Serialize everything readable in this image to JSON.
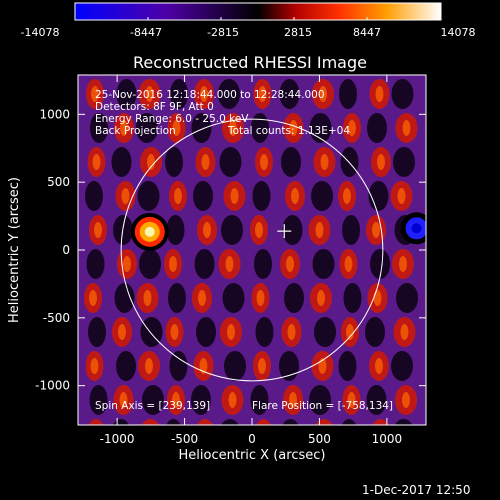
{
  "colorbar": {
    "ticks": [
      "-14078",
      "-8447",
      "-2815",
      "2815",
      "8447",
      "14078"
    ],
    "min": -14078,
    "max": 14078
  },
  "chart_data": {
    "type": "heatmap",
    "title": "Reconstructed RHESSI Image",
    "xlabel": "Heliocentric X (arcsec)",
    "ylabel": "Heliocentric Y (arcsec)",
    "xlim": [
      -1290,
      1290
    ],
    "ylim": [
      -1290,
      1290
    ],
    "xticks": [
      "-1000",
      "-500",
      "0",
      "500",
      "1000"
    ],
    "yticks": [
      "-1000",
      "-500",
      "0",
      "500",
      "1000"
    ],
    "xtick_values": [
      -1000,
      -500,
      0,
      500,
      1000
    ],
    "ytick_values": [
      -1000,
      -500,
      0,
      500,
      1000
    ],
    "solar_disk_radius": 970,
    "marker": {
      "x": 239,
      "y": 139
    },
    "flare_source": {
      "x": -758,
      "y": 134
    },
    "annotations": [
      "25-Nov-2016 12:18:44.000 to 12:28:44.000",
      "Detectors: 8F 9F, Att 0",
      "Energy Range: 6.0 - 25.0 keV",
      "Back Projection",
      "Total counts: 1.13E+04"
    ],
    "spin_axis": "Spin Axis = [239,139]",
    "flare_position": "Flare Position = [-758,134]",
    "colormap": [
      "#0000ff",
      "#4d00a6",
      "#000000",
      "#b00000",
      "#ff3000",
      "#ff9d00",
      "#ffffff"
    ]
  },
  "footer": {
    "timestamp": "1-Dec-2017 12:50"
  }
}
